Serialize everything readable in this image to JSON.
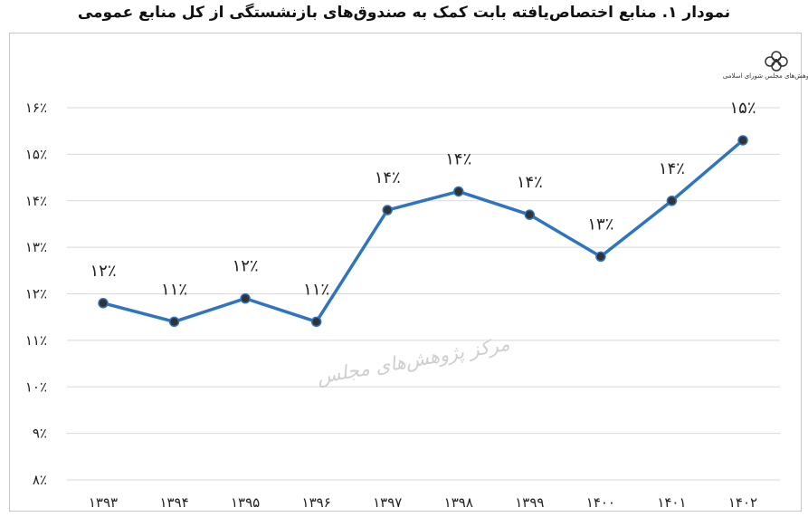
{
  "title": "نمودار ۱. منابع اختصاص‌یافته بابت کمک به صندوق‌های بازنشستگی از کل منابع عمومی",
  "watermark": "مرکز پژوهش‌های مجلس",
  "logo_text": "مرکز پژوهش‌های مجلس شورای اسلامی",
  "colors": {
    "line": "#2e74c0",
    "marker": "#333333",
    "grid": "#d9d9d9"
  },
  "chart_data": {
    "type": "line",
    "categories": [
      "۱۳۹۳",
      "۱۳۹۴",
      "۱۳۹۵",
      "۱۳۹۶",
      "۱۳۹۷",
      "۱۳۹۸",
      "۱۳۹۹",
      "۱۴۰۰",
      "۱۴۰۱",
      "۱۴۰۲"
    ],
    "series": [
      {
        "values": [
          11.8,
          11.4,
          11.9,
          11.4,
          13.8,
          14.2,
          13.7,
          12.8,
          14.0,
          15.3
        ],
        "labels": [
          "۱۲٪",
          "۱۱٪",
          "۱۲٪",
          "۱۱٪",
          "۱۴٪",
          "۱۴٪",
          "۱۴٪",
          "۱۳٪",
          "۱۴٪",
          "۱۵٪"
        ]
      }
    ],
    "ylim": [
      8,
      16
    ],
    "yticks": [
      8,
      9,
      10,
      11,
      12,
      13,
      14,
      15,
      16
    ],
    "ytick_labels": [
      "۸٪",
      "۹٪",
      "۱۰٪",
      "۱۱٪",
      "۱۲٪",
      "۱۳٪",
      "۱۴٪",
      "۱۵٪",
      "۱۶٪"
    ],
    "grid": true,
    "legend": false
  }
}
